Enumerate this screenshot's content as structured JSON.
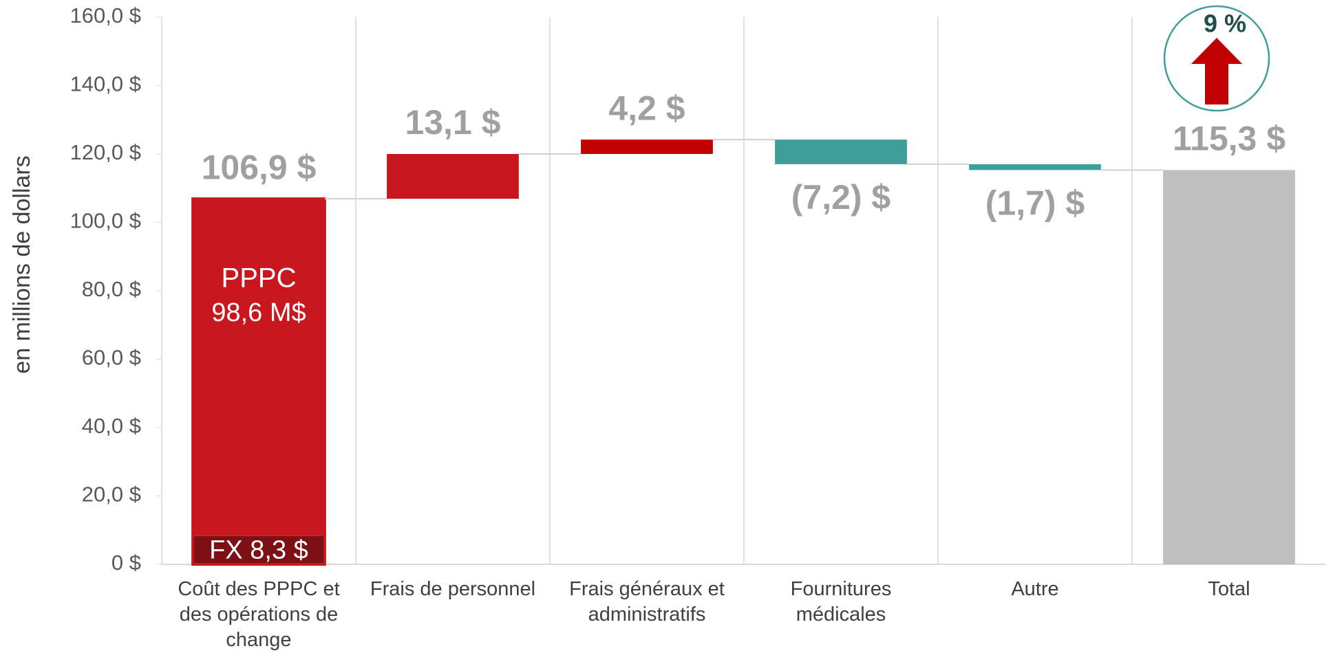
{
  "chart_data": {
    "type": "waterfall",
    "y_axis_label": "en millions de dollars",
    "categories": [
      "Coût des PPPC et des opérations de change",
      "Frais de personnel",
      "Frais généraux et administratifs",
      "Fournitures médicales",
      "Autre",
      "Total"
    ],
    "values": [
      106.9,
      13.1,
      4.2,
      -7.2,
      -1.7,
      115.3
    ],
    "value_labels": [
      "106,9 $",
      "13,1 $",
      "4,2 $",
      "(7,2) $",
      "(1,7) $",
      "115,3 $"
    ],
    "colors": [
      "#c8171f",
      "#c8171f",
      "#c00000",
      "#409e99",
      "#409e99",
      "#bfbfbf"
    ],
    "total_index": 5,
    "breakdown": [
      {
        "label": "FX 8,3 $",
        "value": 8.3,
        "color": "#7d1015"
      },
      {
        "name": "PPPC",
        "label": "98,6 M$",
        "value": 98.6,
        "color": "#c8171f"
      }
    ],
    "annotation": "9 %",
    "ylim": [
      0,
      160
    ],
    "yticks": [
      {
        "value": 0,
        "label": "0 $"
      },
      {
        "value": 20,
        "label": "20,0 $"
      },
      {
        "value": 40,
        "label": "40,0 $"
      },
      {
        "value": 60,
        "label": "60,0 $"
      },
      {
        "value": 80,
        "label": "80,0 $"
      },
      {
        "value": 100,
        "label": "100,0 $"
      },
      {
        "value": 120,
        "label": "120,0 $"
      },
      {
        "value": 140,
        "label": "140,0 $"
      },
      {
        "value": 160,
        "label": "160,0 $"
      }
    ]
  }
}
